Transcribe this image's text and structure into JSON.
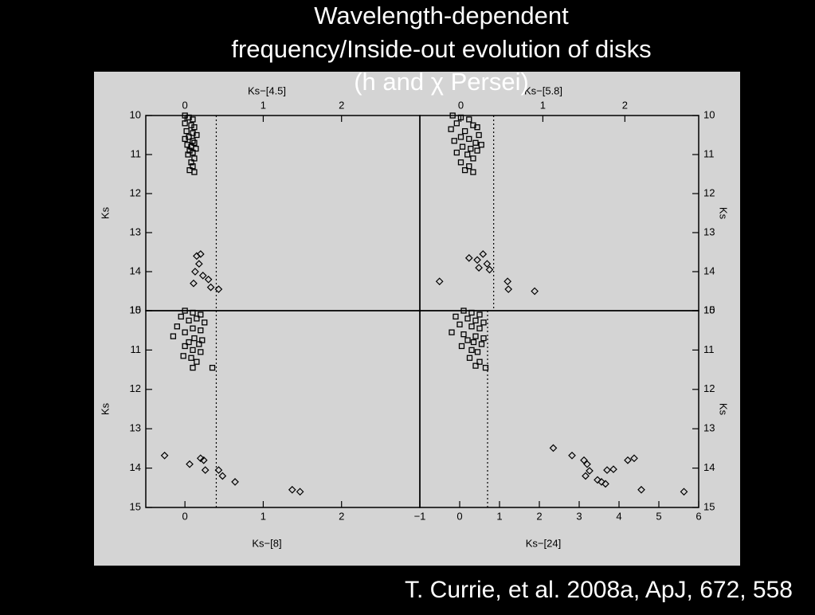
{
  "title_lines": [
    "Wavelength-dependent",
    "frequency/Inside-out evolution of disks",
    "(h and χ Persei)"
  ],
  "citation": "T. Currie, et al. 2008a, ApJ, 672, 558",
  "chart_data": [
    {
      "type": "scatter",
      "xlabel": "Ks−[4.5]",
      "ylabel": "Ks",
      "xaxis_side": "top",
      "yaxis_side": "left",
      "xlim": [
        -0.5,
        3.0
      ],
      "ylim": [
        10,
        15
      ],
      "y_inverted": true,
      "xticks": [
        0,
        1,
        2
      ],
      "yticks": [
        10,
        11,
        12,
        13,
        14,
        15
      ],
      "threshold": 0.4,
      "series": [
        {
          "marker": "square",
          "color": "#000000",
          "x": [
            0.0,
            0.05,
            0.1,
            0.0,
            0.08,
            0.12,
            0.02,
            0.1,
            0.15,
            0.05,
            0.0,
            0.1,
            0.12,
            0.03,
            0.08,
            0.14,
            0.06,
            0.1,
            0.04,
            0.12,
            0.08,
            0.1,
            0.06,
            0.12
          ],
          "y": [
            10.0,
            10.05,
            10.1,
            10.2,
            10.25,
            10.3,
            10.4,
            10.45,
            10.5,
            10.55,
            10.6,
            10.65,
            10.7,
            10.75,
            10.8,
            10.85,
            10.9,
            10.95,
            11.0,
            11.1,
            11.2,
            11.3,
            11.4,
            11.45
          ]
        },
        {
          "marker": "diamond",
          "color": "#000000",
          "x": [
            0.2,
            0.15,
            0.18,
            0.13,
            0.23,
            0.3,
            0.11,
            0.33,
            0.43
          ],
          "y": [
            13.55,
            13.6,
            13.8,
            14.0,
            14.1,
            14.2,
            14.3,
            14.4,
            14.45
          ]
        }
      ]
    },
    {
      "type": "scatter",
      "xlabel": "Ks−[5.8]",
      "ylabel": "Ks",
      "xaxis_side": "top",
      "yaxis_side": "right",
      "xlim": [
        -0.5,
        2.9
      ],
      "ylim": [
        10,
        15
      ],
      "y_inverted": true,
      "xticks": [
        0,
        1,
        2
      ],
      "yticks": [
        10,
        11,
        12,
        13,
        14,
        15
      ],
      "threshold": 0.4,
      "series": [
        {
          "marker": "square",
          "color": "#000000",
          "x": [
            -0.1,
            0.0,
            0.1,
            -0.05,
            0.15,
            0.2,
            -0.12,
            0.05,
            0.22,
            0.0,
            0.1,
            -0.08,
            0.18,
            0.25,
            0.02,
            0.12,
            0.2,
            -0.05,
            0.08,
            0.15,
            0.0,
            0.1,
            0.05,
            0.15
          ],
          "y": [
            10.0,
            10.05,
            10.1,
            10.2,
            10.25,
            10.3,
            10.35,
            10.4,
            10.5,
            10.55,
            10.6,
            10.65,
            10.7,
            10.75,
            10.8,
            10.85,
            10.9,
            10.95,
            11.0,
            11.1,
            11.2,
            11.3,
            11.4,
            11.45
          ]
        },
        {
          "marker": "diamond",
          "color": "#000000",
          "x": [
            -0.26,
            0.1,
            0.2,
            0.27,
            0.32,
            0.35,
            0.22,
            0.57,
            0.58,
            0.9
          ],
          "y": [
            14.25,
            13.65,
            13.7,
            13.55,
            13.8,
            13.95,
            13.9,
            14.25,
            14.45,
            14.5
          ]
        }
      ]
    },
    {
      "type": "scatter",
      "xlabel": "Ks−[8]",
      "ylabel": "Ks",
      "xaxis_side": "bottom",
      "yaxis_side": "left",
      "xlim": [
        -0.5,
        3.0
      ],
      "ylim": [
        10,
        15
      ],
      "y_inverted": true,
      "xticks": [
        0,
        1,
        2
      ],
      "yticks": [
        10,
        11,
        12,
        13,
        14,
        15
      ],
      "threshold": 0.4,
      "series": [
        {
          "marker": "square",
          "color": "#000000",
          "x": [
            0.0,
            0.1,
            0.2,
            -0.05,
            0.15,
            0.05,
            0.25,
            -0.1,
            0.1,
            0.2,
            0.0,
            -0.15,
            0.12,
            0.22,
            0.05,
            0.18,
            0.0,
            0.1,
            0.2,
            -0.02,
            0.08,
            0.15,
            0.1,
            0.35
          ],
          "y": [
            10.0,
            10.05,
            10.1,
            10.15,
            10.2,
            10.25,
            10.3,
            10.4,
            10.45,
            10.5,
            10.55,
            10.65,
            10.7,
            10.75,
            10.8,
            10.85,
            10.9,
            11.0,
            11.05,
            11.15,
            11.2,
            11.3,
            11.45,
            11.45
          ]
        },
        {
          "marker": "diamond",
          "color": "#000000",
          "x": [
            -0.26,
            0.06,
            0.2,
            0.24,
            0.26,
            0.43,
            0.48,
            0.64,
            1.37,
            1.47
          ],
          "y": [
            13.68,
            13.9,
            13.75,
            13.8,
            14.05,
            14.05,
            14.2,
            14.35,
            14.55,
            14.6
          ]
        }
      ]
    },
    {
      "type": "scatter",
      "xlabel": "Ks−[24]",
      "ylabel": "Ks",
      "xaxis_side": "bottom",
      "yaxis_side": "right",
      "xlim": [
        -1,
        6
      ],
      "ylim": [
        10,
        15
      ],
      "y_inverted": true,
      "xticks": [
        {
          "value": -1,
          "label": "−1"
        },
        0,
        1,
        2,
        3,
        4,
        5,
        6
      ],
      "yticks": [
        10,
        11,
        12,
        13,
        14,
        15
      ],
      "threshold": 0.7,
      "series": [
        {
          "marker": "square",
          "color": "#000000",
          "x": [
            0.1,
            0.3,
            0.5,
            -0.1,
            0.2,
            0.4,
            0.6,
            0.0,
            0.3,
            0.5,
            -0.2,
            0.1,
            0.4,
            0.6,
            0.2,
            0.35,
            0.55,
            0.05,
            0.3,
            0.45,
            0.25,
            0.5,
            0.4,
            0.65
          ],
          "y": [
            10.0,
            10.05,
            10.1,
            10.15,
            10.2,
            10.25,
            10.3,
            10.35,
            10.4,
            10.45,
            10.55,
            10.6,
            10.65,
            10.7,
            10.75,
            10.8,
            10.85,
            10.9,
            11.0,
            11.05,
            11.2,
            11.3,
            11.4,
            11.45
          ]
        },
        {
          "marker": "diamond",
          "color": "#000000",
          "x": [
            2.35,
            2.82,
            3.12,
            3.2,
            3.16,
            3.26,
            3.46,
            3.56,
            3.66,
            3.7,
            3.86,
            4.22,
            4.38,
            4.56,
            5.63
          ],
          "y": [
            13.49,
            13.68,
            13.8,
            13.9,
            14.2,
            14.07,
            14.3,
            14.35,
            14.4,
            14.05,
            14.03,
            13.8,
            13.75,
            14.55,
            14.6
          ]
        }
      ]
    }
  ]
}
